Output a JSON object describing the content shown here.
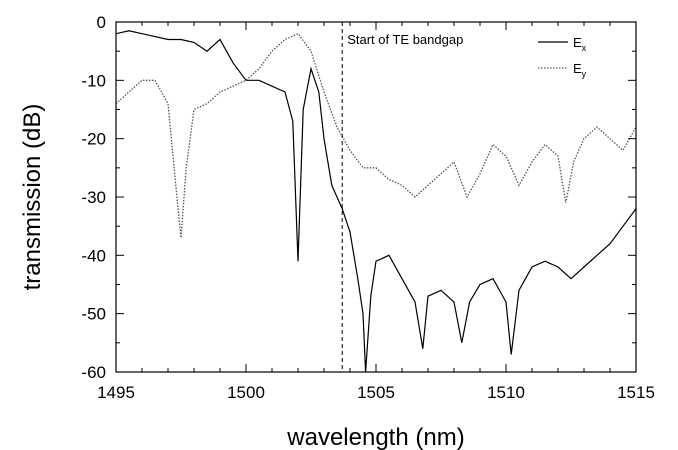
{
  "chart_data": {
    "type": "line",
    "xlabel": "wavelength (nm)",
    "ylabel": "transmission (dB)",
    "xlim": [
      1495,
      1515
    ],
    "ylim": [
      -60,
      0
    ],
    "x_ticks": [
      1495,
      1500,
      1505,
      1510,
      1515
    ],
    "y_ticks": [
      0,
      -10,
      -20,
      -30,
      -40,
      -50,
      -60
    ],
    "grid": false,
    "legend_position": "top-right",
    "annotations": [
      {
        "text": "Start of TE bandgap",
        "x": 1503.7,
        "line": "vertical dashed"
      }
    ],
    "series": [
      {
        "name": "Ex",
        "legend_main": "E",
        "legend_sub": "x",
        "style": "solid",
        "color": "#000000",
        "points": [
          [
            1495.0,
            -2
          ],
          [
            1495.5,
            -1.5
          ],
          [
            1496.0,
            -2
          ],
          [
            1496.5,
            -2.5
          ],
          [
            1497.0,
            -3
          ],
          [
            1497.5,
            -3
          ],
          [
            1498.0,
            -3.5
          ],
          [
            1498.5,
            -5
          ],
          [
            1499.0,
            -3
          ],
          [
            1499.5,
            -7
          ],
          [
            1500.0,
            -10
          ],
          [
            1500.5,
            -10
          ],
          [
            1501.0,
            -11
          ],
          [
            1501.5,
            -12
          ],
          [
            1501.8,
            -17
          ],
          [
            1502.0,
            -41
          ],
          [
            1502.2,
            -15
          ],
          [
            1502.5,
            -8
          ],
          [
            1502.8,
            -12
          ],
          [
            1503.0,
            -20
          ],
          [
            1503.3,
            -28
          ],
          [
            1503.5,
            -30
          ],
          [
            1503.7,
            -32
          ],
          [
            1504.0,
            -36
          ],
          [
            1504.3,
            -44
          ],
          [
            1504.5,
            -50
          ],
          [
            1504.6,
            -60
          ],
          [
            1504.8,
            -47
          ],
          [
            1505.0,
            -41
          ],
          [
            1505.5,
            -40
          ],
          [
            1506.0,
            -44
          ],
          [
            1506.5,
            -48
          ],
          [
            1506.8,
            -56
          ],
          [
            1507.0,
            -47
          ],
          [
            1507.5,
            -46
          ],
          [
            1508.0,
            -48
          ],
          [
            1508.3,
            -55
          ],
          [
            1508.6,
            -48
          ],
          [
            1509.0,
            -45
          ],
          [
            1509.5,
            -44
          ],
          [
            1510.0,
            -48
          ],
          [
            1510.2,
            -57
          ],
          [
            1510.5,
            -46
          ],
          [
            1511.0,
            -42
          ],
          [
            1511.5,
            -41
          ],
          [
            1512.0,
            -42
          ],
          [
            1512.5,
            -44
          ],
          [
            1513.0,
            -42
          ],
          [
            1513.5,
            -40
          ],
          [
            1514.0,
            -38
          ],
          [
            1514.5,
            -35
          ],
          [
            1515.0,
            -32
          ]
        ]
      },
      {
        "name": "Ey",
        "legend_main": "E",
        "legend_sub": "y",
        "style": "dotted",
        "color": "#555555",
        "points": [
          [
            1495.0,
            -14
          ],
          [
            1495.5,
            -12
          ],
          [
            1496.0,
            -10
          ],
          [
            1496.5,
            -10
          ],
          [
            1497.0,
            -14
          ],
          [
            1497.3,
            -28
          ],
          [
            1497.5,
            -37
          ],
          [
            1497.7,
            -25
          ],
          [
            1498.0,
            -15
          ],
          [
            1498.5,
            -14
          ],
          [
            1499.0,
            -12
          ],
          [
            1499.5,
            -11
          ],
          [
            1500.0,
            -10
          ],
          [
            1500.5,
            -8
          ],
          [
            1501.0,
            -5
          ],
          [
            1501.5,
            -3
          ],
          [
            1502.0,
            -2
          ],
          [
            1502.5,
            -5
          ],
          [
            1503.0,
            -12
          ],
          [
            1503.5,
            -18
          ],
          [
            1504.0,
            -22
          ],
          [
            1504.5,
            -25
          ],
          [
            1505.0,
            -25
          ],
          [
            1505.5,
            -27
          ],
          [
            1506.0,
            -28
          ],
          [
            1506.5,
            -30
          ],
          [
            1507.0,
            -28
          ],
          [
            1507.5,
            -26
          ],
          [
            1508.0,
            -24
          ],
          [
            1508.5,
            -30
          ],
          [
            1509.0,
            -26
          ],
          [
            1509.5,
            -21
          ],
          [
            1510.0,
            -23
          ],
          [
            1510.5,
            -28
          ],
          [
            1511.0,
            -24
          ],
          [
            1511.5,
            -21
          ],
          [
            1512.0,
            -23
          ],
          [
            1512.3,
            -31
          ],
          [
            1512.6,
            -24
          ],
          [
            1513.0,
            -20
          ],
          [
            1513.5,
            -18
          ],
          [
            1514.0,
            -20
          ],
          [
            1514.5,
            -22
          ],
          [
            1515.0,
            -18
          ]
        ]
      }
    ]
  }
}
